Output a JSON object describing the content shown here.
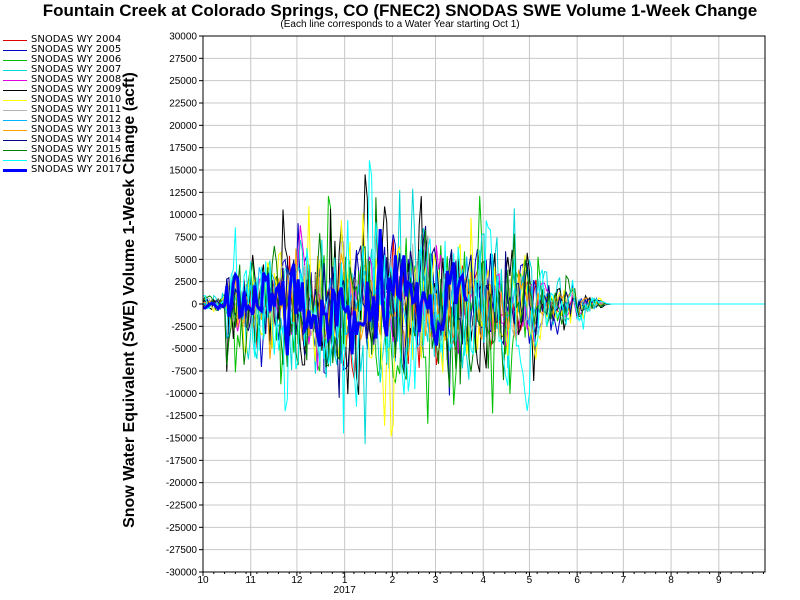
{
  "chart_data": {
    "type": "line",
    "title": "Fountain Creek at Colorado Springs, CO (FNEC2) SNODAS SWE Volume 1-Week Change",
    "subtitle": "(Each line corresponds to a Water Year starting Oct 1)",
    "ylabel": "Snow Water Equivalent (SWE) Volume 1-Week Change (acft)",
    "xlabel": "",
    "x_tick_labels": [
      "10",
      "11",
      "12",
      "1",
      "2",
      "3",
      "4",
      "5",
      "6",
      "7",
      "8",
      "9"
    ],
    "x_year_label": "2017",
    "y_tick_labels": [
      "30000",
      "27500",
      "25000",
      "22500",
      "20000",
      "17500",
      "15000",
      "12500",
      "10000",
      "7500",
      "5000",
      "2500",
      "0",
      "-2500",
      "-5000",
      "-7500",
      "-10000",
      "-12500",
      "-15000",
      "-17500",
      "-20000",
      "-22500",
      "-25000",
      "-27500",
      "-30000"
    ],
    "ylim": [
      -30000,
      30000
    ],
    "xlim": [
      "Oct 1",
      "Oct 1 (next year)"
    ],
    "grid": true,
    "legend_position": "left",
    "series": [
      {
        "name": "SNODAS WY 2004",
        "color": "#e00000",
        "seed": 3,
        "amp": 6000,
        "width": 1
      },
      {
        "name": "SNODAS WY 2005",
        "color": "#0000c8",
        "seed": 7,
        "amp": 9000,
        "width": 1
      },
      {
        "name": "SNODAS WY 2006",
        "color": "#00c000",
        "seed": 11,
        "amp": 11000,
        "width": 1
      },
      {
        "name": "SNODAS WY 2007",
        "color": "#00d8d8",
        "seed": 13,
        "amp": 12000,
        "width": 1
      },
      {
        "name": "SNODAS WY 2008",
        "color": "#e000e0",
        "seed": 17,
        "amp": 7000,
        "width": 1
      },
      {
        "name": "SNODAS WY 2009",
        "color": "#000000",
        "seed": 19,
        "amp": 11000,
        "width": 1
      },
      {
        "name": "SNODAS WY 2010",
        "color": "#ffff00",
        "seed": 23,
        "amp": 11000,
        "width": 1
      },
      {
        "name": "SNODAS WY 2011",
        "color": "#b4b4b4",
        "seed": 29,
        "amp": 8000,
        "width": 1
      },
      {
        "name": "SNODAS WY 2012",
        "color": "#00b4ff",
        "seed": 31,
        "amp": 6000,
        "width": 1
      },
      {
        "name": "SNODAS WY 2013",
        "color": "#ffa000",
        "seed": 37,
        "amp": 7000,
        "width": 1
      },
      {
        "name": "SNODAS WY 2014",
        "color": "#000080",
        "seed": 41,
        "amp": 10000,
        "width": 1
      },
      {
        "name": "SNODAS WY 2015",
        "color": "#008000",
        "seed": 43,
        "amp": 12000,
        "width": 1
      },
      {
        "name": "SNODAS WY 2016",
        "color": "#00ffff",
        "seed": 47,
        "amp": 14000,
        "width": 1
      },
      {
        "name": "SNODAS WY 2017",
        "color": "#0000ff",
        "seed": 53,
        "amp": 6500,
        "width": 3,
        "end_fraction": 0.47
      }
    ]
  }
}
